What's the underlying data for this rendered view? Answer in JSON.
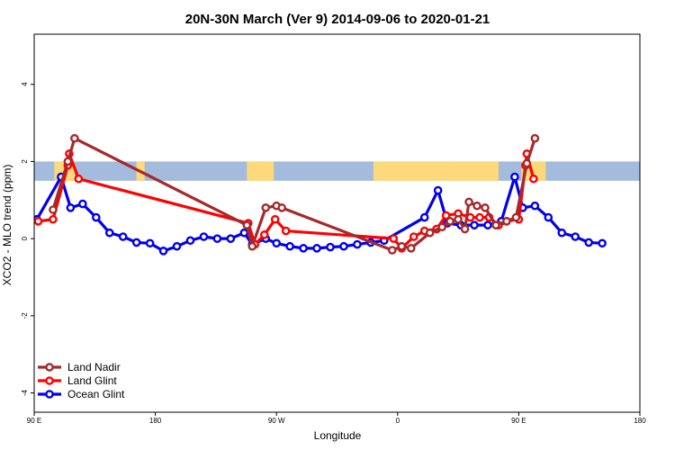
{
  "chart_data": {
    "type": "line",
    "title": "20N-30N March (Ver 9)   2014-09-06 to 2020-01-21",
    "xlabel": "Longitude",
    "ylabel": "XCO2 - MLO trend (ppm)",
    "xlim": [
      90,
      540
    ],
    "ylim": [
      -4.5,
      5.3
    ],
    "x_ticks": [
      {
        "value": 90,
        "label": "90 E"
      },
      {
        "value": 180,
        "label": "180"
      },
      {
        "value": 270,
        "label": "90 W"
      },
      {
        "value": 360,
        "label": "0"
      },
      {
        "value": 450,
        "label": "90 E"
      },
      {
        "value": 540,
        "label": "180"
      }
    ],
    "y_ticks": [
      {
        "value": -4,
        "label": "-4"
      },
      {
        "value": -2,
        "label": "-2"
      },
      {
        "value": 0,
        "label": "0"
      },
      {
        "value": 2,
        "label": "2"
      },
      {
        "value": 4,
        "label": "4"
      }
    ],
    "land_band": {
      "y_range": [
        1.5,
        2.0
      ],
      "ocean_color": "#a3bbdc",
      "land_color": "#fcd97a",
      "land_segments": [
        [
          105,
          118
        ],
        [
          112,
          120
        ],
        [
          166,
          172
        ],
        [
          248,
          262
        ],
        [
          257,
          268
        ],
        [
          342,
          404
        ],
        [
          402,
          435
        ],
        [
          452,
          470
        ]
      ]
    },
    "legend": {
      "position": "bottom-left",
      "entries": [
        "Land Nadir",
        "Land Glint",
        "Ocean Glint"
      ]
    },
    "series": [
      {
        "name": "Ocean Glint",
        "color": "#0000ee",
        "points": [
          [
            92,
            0.5
          ],
          [
            110,
            1.6
          ],
          [
            117,
            0.8
          ],
          [
            126,
            0.9
          ],
          [
            136,
            0.55
          ],
          [
            146,
            0.15
          ],
          [
            156,
            0.05
          ],
          [
            166,
            -0.1
          ],
          [
            176,
            -0.12
          ],
          [
            186,
            -0.32
          ],
          [
            196,
            -0.2
          ],
          [
            206,
            -0.05
          ],
          [
            216,
            0.05
          ],
          [
            226,
            0.0
          ],
          [
            236,
            0.0
          ],
          [
            246,
            0.15
          ],
          [
            252,
            -0.15
          ],
          [
            262,
            0.0
          ],
          [
            270,
            -0.12
          ],
          [
            280,
            -0.2
          ],
          [
            290,
            -0.25
          ],
          [
            300,
            -0.25
          ],
          [
            310,
            -0.22
          ],
          [
            320,
            -0.2
          ],
          [
            330,
            -0.15
          ],
          [
            340,
            -0.1
          ],
          [
            350,
            -0.05
          ],
          [
            380,
            0.55
          ],
          [
            390,
            1.25
          ],
          [
            397,
            0.4
          ],
          [
            407,
            0.35
          ],
          [
            417,
            0.35
          ],
          [
            427,
            0.35
          ],
          [
            437,
            0.45
          ],
          [
            447,
            1.6
          ],
          [
            453,
            0.8
          ],
          [
            462,
            0.85
          ],
          [
            472,
            0.55
          ],
          [
            482,
            0.15
          ],
          [
            492,
            0.05
          ],
          [
            502,
            -0.1
          ],
          [
            512,
            -0.12
          ]
        ]
      },
      {
        "name": "Land Glint",
        "color": "#ff0000",
        "points": [
          [
            93,
            0.45
          ],
          [
            104,
            0.5
          ],
          [
            115,
            1.9
          ],
          [
            116,
            2.2
          ],
          [
            123,
            1.55
          ],
          [
            249,
            0.4
          ],
          [
            254,
            -0.15
          ],
          [
            261,
            0.1
          ],
          [
            269,
            0.5
          ],
          [
            277,
            0.2
          ],
          [
            357,
            0.0
          ],
          [
            363,
            -0.25
          ],
          [
            372,
            0.05
          ],
          [
            380,
            0.2
          ],
          [
            389,
            0.25
          ],
          [
            396,
            0.6
          ],
          [
            405,
            0.65
          ],
          [
            414,
            0.55
          ],
          [
            421,
            0.55
          ],
          [
            428,
            0.55
          ],
          [
            435,
            0.35
          ],
          [
            441,
            0.45
          ],
          [
            450,
            0.5
          ],
          [
            455,
            1.9
          ],
          [
            456,
            2.2
          ],
          [
            461,
            1.55
          ]
        ]
      },
      {
        "name": "Land Nadir",
        "color": "#a52a2a",
        "points": [
          [
            104,
            0.75
          ],
          [
            115,
            2.0
          ],
          [
            120,
            2.6
          ],
          [
            248,
            0.35
          ],
          [
            252,
            -0.2
          ],
          [
            262,
            0.8
          ],
          [
            270,
            0.85
          ],
          [
            274,
            0.8
          ],
          [
            356,
            -0.3
          ],
          [
            363,
            -0.2
          ],
          [
            370,
            -0.25
          ],
          [
            384,
            0.15
          ],
          [
            393,
            0.3
          ],
          [
            399,
            0.45
          ],
          [
            405,
            0.5
          ],
          [
            410,
            0.25
          ],
          [
            413,
            0.95
          ],
          [
            419,
            0.85
          ],
          [
            425,
            0.8
          ],
          [
            433,
            0.35
          ],
          [
            441,
            0.45
          ],
          [
            448,
            0.55
          ],
          [
            456,
            1.95
          ],
          [
            462,
            2.6
          ]
        ]
      }
    ]
  }
}
